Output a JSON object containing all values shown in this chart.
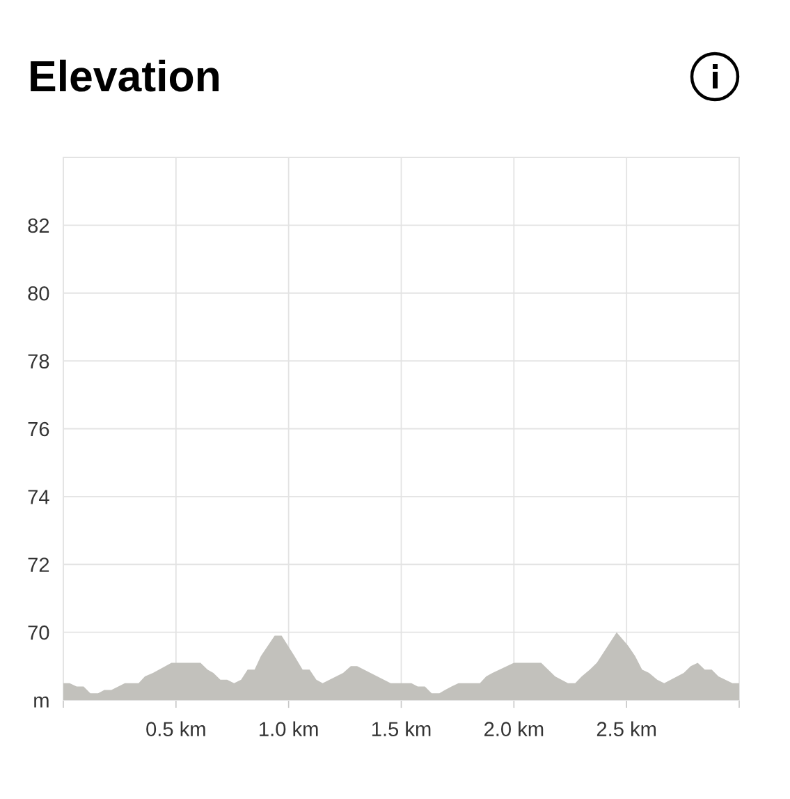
{
  "chart_data": {
    "type": "area",
    "title": "Elevation",
    "x": [
      0,
      0.028,
      0.059,
      0.09,
      0.12,
      0.154,
      0.182,
      0.213,
      0.244,
      0.273,
      0.334,
      0.362,
      0.398,
      0.48,
      0.609,
      0.64,
      0.666,
      0.697,
      0.727,
      0.758,
      0.789,
      0.818,
      0.849,
      0.877,
      0.938,
      0.969,
      1.026,
      1.062,
      1.093,
      1.123,
      1.151,
      1.242,
      1.276,
      1.304,
      1.453,
      1.545,
      1.573,
      1.605,
      1.635,
      1.669,
      1.694,
      1.723,
      1.754,
      1.849,
      1.877,
      1.905,
      2.0,
      2.121,
      2.152,
      2.183,
      2.24,
      2.272,
      2.301,
      2.337,
      2.368,
      2.456,
      2.507,
      2.538,
      2.569,
      2.6,
      2.636,
      2.667,
      2.754,
      2.785,
      2.816,
      2.847,
      2.878,
      2.908,
      2.97,
      3.0
    ],
    "series": [
      {
        "color": "#c2c1bc",
        "values": [
          68.5,
          68.5,
          68.4,
          68.4,
          68.2,
          68.2,
          68.3,
          68.3,
          68.4,
          68.5,
          68.5,
          68.7,
          68.8,
          69.1,
          69.1,
          68.9,
          68.8,
          68.6,
          68.6,
          68.5,
          68.6,
          68.9,
          68.9,
          69.3,
          69.9,
          69.9,
          69.3,
          68.9,
          68.9,
          68.6,
          68.5,
          68.8,
          69.0,
          69.0,
          68.5,
          68.5,
          68.4,
          68.4,
          68.2,
          68.2,
          68.3,
          68.4,
          68.5,
          68.5,
          68.7,
          68.8,
          69.1,
          69.1,
          68.9,
          68.7,
          68.5,
          68.5,
          68.7,
          68.9,
          69.1,
          70.0,
          69.6,
          69.3,
          68.9,
          68.8,
          68.6,
          68.5,
          68.8,
          69.0,
          69.1,
          68.9,
          68.9,
          68.7,
          68.5,
          68.5
        ]
      }
    ],
    "xlim": [
      0,
      3.0
    ],
    "ylim": [
      68,
      84
    ],
    "xticks": [
      {
        "value": 0,
        "label": null
      },
      {
        "value": 0.5,
        "label": "0.5 km"
      },
      {
        "value": 1.0,
        "label": "1.0 km"
      },
      {
        "value": 1.5,
        "label": "1.5 km"
      },
      {
        "value": 2.0,
        "label": "2.0 km"
      },
      {
        "value": 2.5,
        "label": "2.5 km"
      },
      {
        "value": 3.0,
        "label": null
      }
    ],
    "yticks": [
      {
        "value": 68,
        "label": "m"
      },
      70,
      72,
      74,
      76,
      78,
      80,
      82
    ],
    "grid": true
  }
}
